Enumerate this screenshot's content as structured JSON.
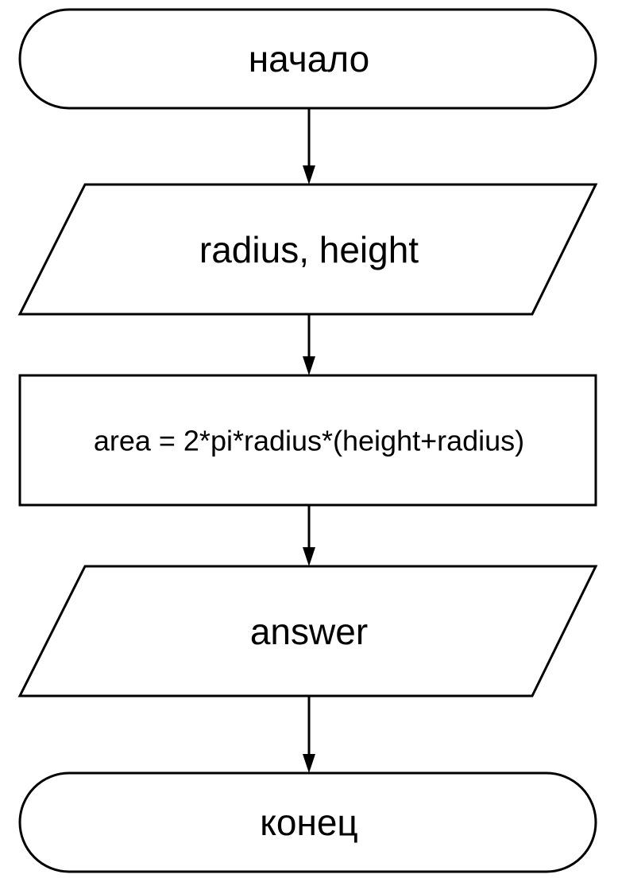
{
  "flowchart": {
    "nodes": [
      {
        "id": "start",
        "kind": "terminator",
        "label": "начало"
      },
      {
        "id": "input",
        "kind": "input-output",
        "label": "radius, height"
      },
      {
        "id": "process",
        "kind": "process",
        "label": "area = 2*pi*radius*(height+radius)"
      },
      {
        "id": "output",
        "kind": "input-output",
        "label": "answer"
      },
      {
        "id": "end",
        "kind": "terminator",
        "label": "конец"
      }
    ],
    "edges": [
      {
        "from": "start",
        "to": "input"
      },
      {
        "from": "input",
        "to": "process"
      },
      {
        "from": "process",
        "to": "output"
      },
      {
        "from": "output",
        "to": "end"
      }
    ],
    "colors": {
      "stroke": "#000000",
      "fill": "#ffffff",
      "text": "#000000"
    }
  }
}
